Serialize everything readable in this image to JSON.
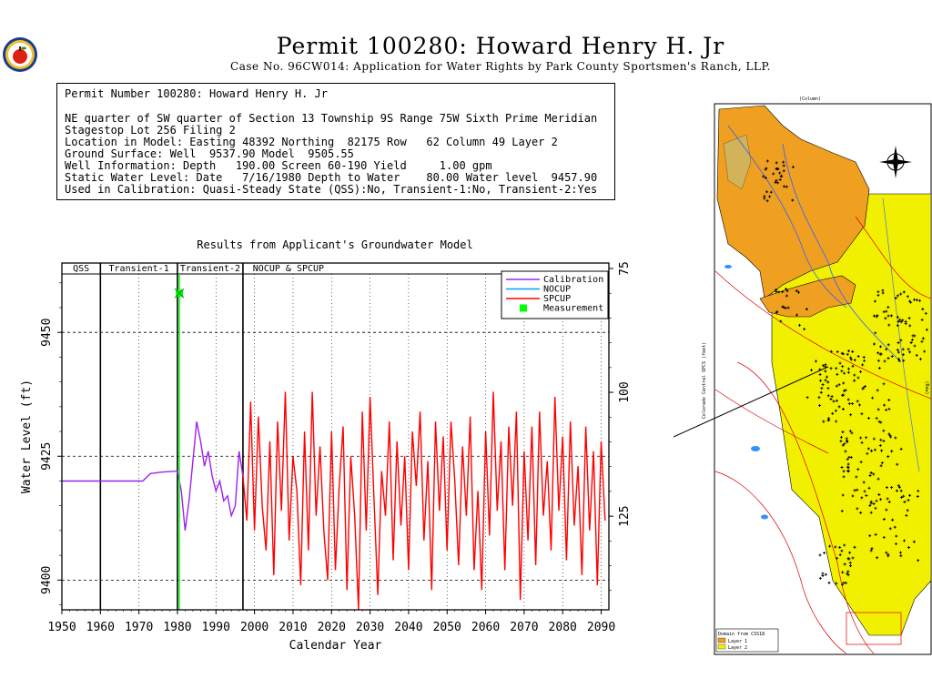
{
  "header": {
    "title": "Permit 100280:  Howard Henry H. Jr",
    "subtitle": "Case No. 96CW014: Application for Water Rights by Park County Sportsmen's Ranch, LLP."
  },
  "info": {
    "line1": "Permit Number 100280: Howard Henry H. Jr",
    "line2": "NE quarter of SW quarter of Section 13 Township 9S Range 75W Sixth Prime Meridian",
    "line3": "Stagestop Lot 256 Filing 2",
    "line4": "Location in Model: Easting 48392 Northing  82175 Row   62 Column 49 Layer 2",
    "line5": "Ground Surface: Well  9537.90 Model  9505.55",
    "line6": "Well Information: Depth   190.00 Screen 60-190 Yield     1.00 gpm",
    "line7": "Static Water Level: Date   7/16/1980 Depth to Water    80.00 Water level  9457.90",
    "line8": "Used in Calibration: Quasi-Steady State (QSS):No, Transient-1:No, Transient-2:Yes"
  },
  "colors": {
    "calibration": "#a020f0",
    "nocup": "#00a0ff",
    "spcup": "#ff0000",
    "measurement": "#00ff00",
    "map_orange": "#f0a020",
    "map_yellow": "#f0f000"
  },
  "chart_data": {
    "type": "line",
    "title": "Results from Applicant's Groundwater Model",
    "xlabel": "Calendar Year",
    "ylabel": "Water Level (ft)",
    "y2label": "Depth to Water (ft)",
    "xlim": [
      1950,
      2092
    ],
    "ylim": [
      1394,
      1464
    ],
    "y_offset_label": 9400,
    "x_ticks": [
      "1950",
      "1960",
      "1970",
      "1980",
      "1990",
      "2000",
      "2010",
      "2020",
      "2030",
      "2040",
      "2050",
      "2060",
      "2070",
      "2080",
      "2090"
    ],
    "y_ticks": [
      "9400",
      "9425",
      "9450"
    ],
    "y2_ticks": [
      "75",
      "100",
      "125"
    ],
    "period_labels": [
      "QSS",
      "Transient-1",
      "Transient-2",
      "NOCUP  &  SPCUP"
    ],
    "period_bounds": [
      1950,
      1960,
      1980,
      1997,
      2092
    ],
    "legend": [
      "Calibration",
      "NOCUP",
      "SPCUP",
      "Measurement"
    ],
    "legend_position": "top-right",
    "measurement": {
      "x": 1980.5,
      "y": 9457.9
    },
    "series": [
      {
        "name": "Calibration",
        "points": [
          [
            1950,
            9420
          ],
          [
            1971,
            9420
          ],
          [
            1973,
            9421.5
          ],
          [
            1976,
            9421.8
          ],
          [
            1980,
            9422
          ],
          [
            1981,
            9418
          ],
          [
            1982,
            9410
          ],
          [
            1983,
            9416
          ],
          [
            1985,
            9432
          ],
          [
            1986,
            9428
          ],
          [
            1987,
            9423
          ],
          [
            1988,
            9426
          ],
          [
            1989,
            9421
          ],
          [
            1990,
            9418
          ],
          [
            1991,
            9420
          ],
          [
            1992,
            9416
          ],
          [
            1993,
            9417
          ],
          [
            1994,
            9413
          ],
          [
            1995,
            9415
          ],
          [
            1996,
            9426
          ],
          [
            1997,
            9421
          ]
        ]
      },
      {
        "name": "SPCUP",
        "points": [
          [
            1997,
            9421
          ],
          [
            1998,
            9412
          ],
          [
            1999,
            9436
          ],
          [
            2000,
            9410
          ],
          [
            2001,
            9433
          ],
          [
            2002,
            9415
          ],
          [
            2003,
            9406
          ],
          [
            2004,
            9428
          ],
          [
            2005,
            9401
          ],
          [
            2006,
            9432
          ],
          [
            2007,
            9414
          ],
          [
            2008,
            9438
          ],
          [
            2009,
            9408
          ],
          [
            2010,
            9425
          ],
          [
            2011,
            9418
          ],
          [
            2012,
            9399
          ],
          [
            2013,
            9430
          ],
          [
            2014,
            9406
          ],
          [
            2015,
            9438
          ],
          [
            2016,
            9413
          ],
          [
            2017,
            9427
          ],
          [
            2018,
            9410
          ],
          [
            2019,
            9400
          ],
          [
            2020,
            9430
          ],
          [
            2021,
            9402
          ],
          [
            2022,
            9419
          ],
          [
            2023,
            9431
          ],
          [
            2024,
            9398
          ],
          [
            2025,
            9425
          ],
          [
            2026,
            9413
          ],
          [
            2027,
            9394
          ],
          [
            2028,
            9434
          ],
          [
            2029,
            9410
          ],
          [
            2030,
            9437
          ],
          [
            2031,
            9417
          ],
          [
            2032,
            9397
          ],
          [
            2033,
            9422
          ],
          [
            2034,
            9413
          ],
          [
            2035,
            9432
          ],
          [
            2036,
            9404
          ],
          [
            2037,
            9428
          ],
          [
            2038,
            9411
          ],
          [
            2039,
            9425
          ],
          [
            2040,
            9402
          ],
          [
            2041,
            9430
          ],
          [
            2042,
            9419
          ],
          [
            2043,
            9434
          ],
          [
            2044,
            9408
          ],
          [
            2045,
            9424
          ],
          [
            2046,
            9398
          ],
          [
            2047,
            9432
          ],
          [
            2048,
            9414
          ],
          [
            2049,
            9429
          ],
          [
            2050,
            9406
          ],
          [
            2051,
            9432
          ],
          [
            2052,
            9420
          ],
          [
            2053,
            9403
          ],
          [
            2054,
            9427
          ],
          [
            2055,
            9413
          ],
          [
            2056,
            9433
          ],
          [
            2057,
            9402
          ],
          [
            2058,
            9418
          ],
          [
            2059,
            9398
          ],
          [
            2060,
            9430
          ],
          [
            2061,
            9409
          ],
          [
            2062,
            9438
          ],
          [
            2063,
            9414
          ],
          [
            2064,
            9428
          ],
          [
            2065,
            9402
          ],
          [
            2066,
            9431
          ],
          [
            2067,
            9415
          ],
          [
            2068,
            9434
          ],
          [
            2069,
            9396
          ],
          [
            2070,
            9426
          ],
          [
            2071,
            9408
          ],
          [
            2072,
            9431
          ],
          [
            2073,
            9403
          ],
          [
            2074,
            9434
          ],
          [
            2075,
            9413
          ],
          [
            2076,
            9424
          ],
          [
            2077,
            9406
          ],
          [
            2078,
            9437
          ],
          [
            2079,
            9414
          ],
          [
            2080,
            9429
          ],
          [
            2081,
            9404
          ],
          [
            2082,
            9432
          ],
          [
            2083,
            9411
          ],
          [
            2084,
            9423
          ],
          [
            2085,
            9401
          ],
          [
            2086,
            9431
          ],
          [
            2087,
            9410
          ],
          [
            2088,
            9426
          ],
          [
            2089,
            9399
          ],
          [
            2090,
            9428
          ],
          [
            2091,
            9412
          ]
        ]
      }
    ]
  },
  "map": {
    "top_label": "(Column)",
    "side_label": "Colorado Central SPCS (feet)",
    "right_label": "(Row)",
    "legend_title": "Domain from CSS18",
    "legend_items": [
      "Layer 1",
      "Layer 2"
    ]
  }
}
